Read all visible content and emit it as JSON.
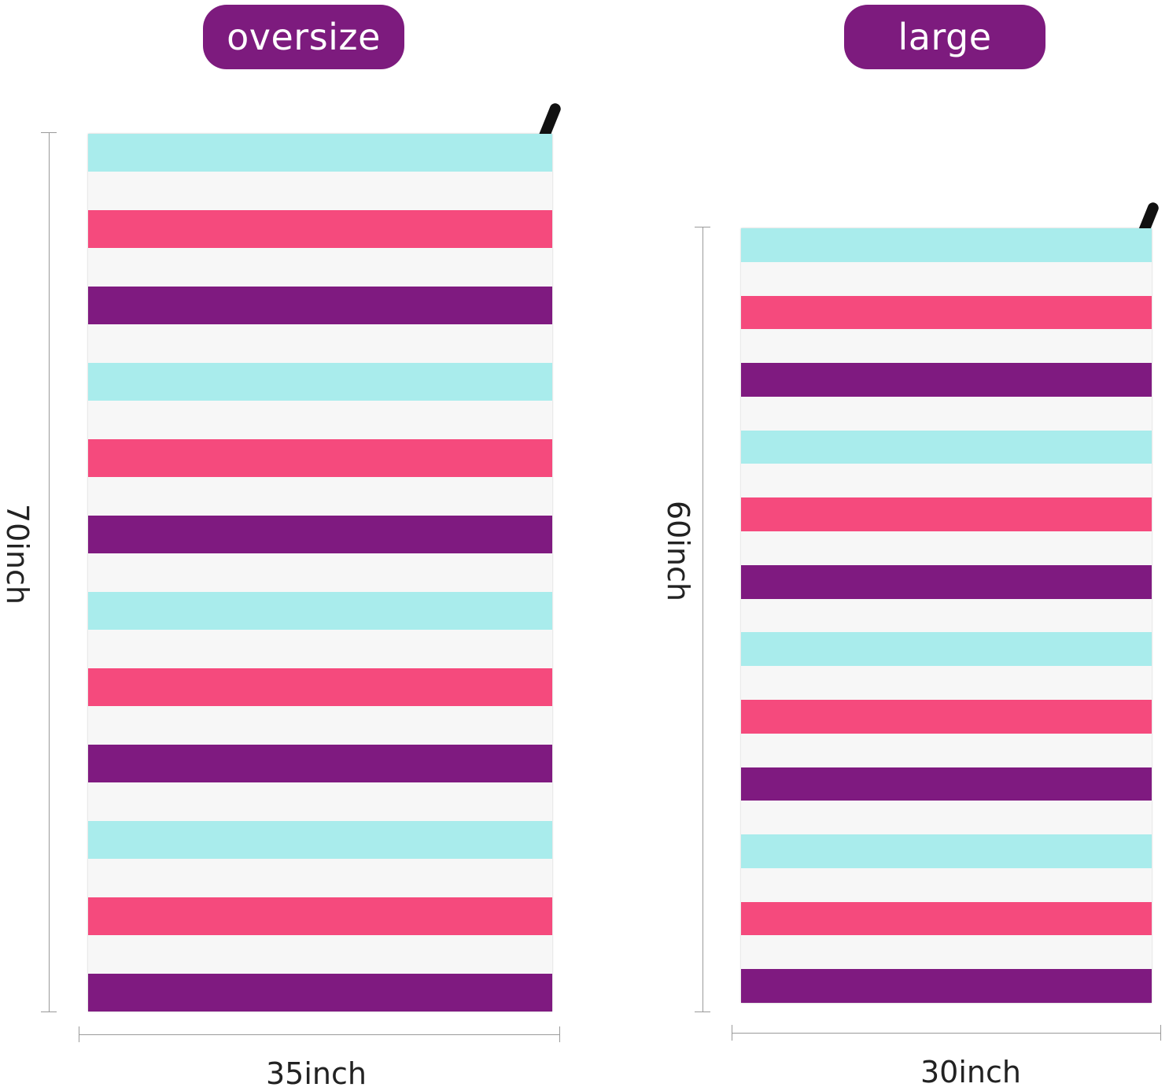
{
  "labels": {
    "oversize": "oversize",
    "large": "large",
    "oversize_height": "70inch",
    "oversize_width": "35inch",
    "large_height": "60inch",
    "large_width": "30inch"
  },
  "colors": {
    "pill": "#7d1b7e",
    "aqua": "#a9ecec",
    "white": "#f7f7f7",
    "pink": "#f54a7d",
    "purple": "#7f1a80"
  },
  "towels": {
    "oversize_stripes": [
      "aqua",
      "white",
      "pink",
      "white",
      "purple",
      "white",
      "aqua",
      "white",
      "pink",
      "white",
      "purple",
      "white",
      "aqua",
      "white",
      "pink",
      "white",
      "purple",
      "white",
      "aqua",
      "white",
      "pink",
      "white",
      "purple"
    ],
    "large_stripes": [
      "aqua",
      "white",
      "pink",
      "white",
      "purple",
      "white",
      "aqua",
      "white",
      "pink",
      "white",
      "purple",
      "white",
      "aqua",
      "white",
      "pink",
      "white",
      "purple",
      "white",
      "aqua",
      "white",
      "pink",
      "white",
      "purple"
    ]
  }
}
